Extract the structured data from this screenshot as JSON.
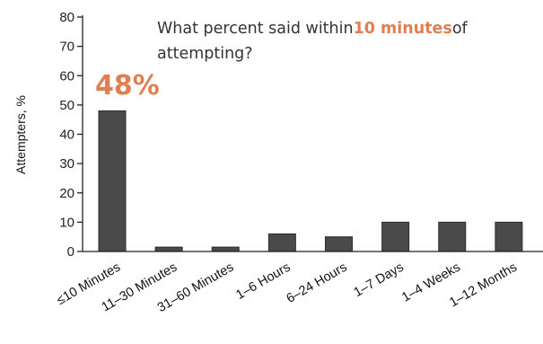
{
  "question": {
    "before": "What percent said within",
    "highlight": "10 minutes",
    "after": "of attempting?"
  },
  "callout": "48%",
  "colors": {
    "bar": "#4a4a4a",
    "highlight": "#e07f52"
  },
  "chart_data": {
    "type": "bar",
    "title": "",
    "xlabel": "",
    "ylabel": "Attempters, %",
    "ylim": [
      0,
      80
    ],
    "yticks": [
      0,
      10,
      20,
      30,
      40,
      50,
      60,
      70,
      80
    ],
    "grid": false,
    "categories": [
      "≤10 Minutes",
      "11–30 Minutes",
      "31–60 Minutes",
      "1–6 Hours",
      "6–24 Hours",
      "1–7 Days",
      "1–4 Weeks",
      "1–12 Months"
    ],
    "values": [
      48,
      1.5,
      1.5,
      6,
      5,
      10,
      10,
      10
    ]
  }
}
